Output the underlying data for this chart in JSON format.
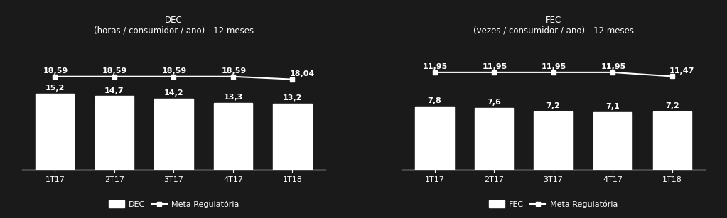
{
  "background_color": "#1a1a1a",
  "text_color": "#ffffff",
  "bar_color": "#ffffff",
  "line_color": "#ffffff",
  "marker_color": "#ffffff",
  "dec": {
    "title_line1": "DEC",
    "title_line2": "(horas / consumidor / ano) - 12 meses",
    "categories": [
      "1T17",
      "2T17",
      "3T17",
      "4T17",
      "1T18"
    ],
    "bar_values": [
      15.2,
      14.7,
      14.2,
      13.3,
      13.2
    ],
    "meta_values": [
      18.59,
      18.59,
      18.59,
      18.59,
      18.04
    ],
    "ylim": [
      0,
      26
    ],
    "legend_bar": "DEC",
    "legend_line": "Meta Regulatória"
  },
  "fec": {
    "title_line1": "FEC",
    "title_line2": "(vezes / consumidor / ano) - 12 meses",
    "categories": [
      "1T17",
      "2T17",
      "3T17",
      "4T17",
      "1T18"
    ],
    "bar_values": [
      7.8,
      7.6,
      7.2,
      7.1,
      7.2
    ],
    "meta_values": [
      11.95,
      11.95,
      11.95,
      11.95,
      11.47
    ],
    "ylim": [
      0,
      16
    ],
    "legend_bar": "FEC",
    "legend_line": "Meta Regulatória"
  },
  "bar_width": 0.65,
  "title_fontsize": 8.5,
  "label_fontsize": 8,
  "tick_fontsize": 8,
  "legend_fontsize": 8,
  "value_fontsize": 8
}
